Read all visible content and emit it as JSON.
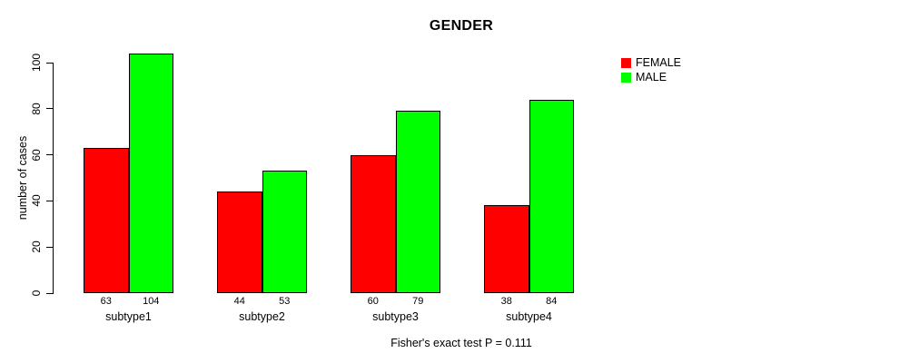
{
  "chart_data": {
    "type": "bar",
    "title": "GENDER",
    "categories": [
      "subtype1",
      "subtype2",
      "subtype3",
      "subtype4"
    ],
    "series": [
      {
        "name": "FEMALE",
        "color": "#FF0000",
        "values": [
          63,
          44,
          60,
          38
        ]
      },
      {
        "name": "MALE",
        "color": "#00FF00",
        "values": [
          104,
          53,
          79,
          84
        ]
      }
    ],
    "xlabel": "",
    "ylabel": "number of cases",
    "ylim": [
      0,
      100
    ],
    "yticks": [
      0,
      20,
      40,
      60,
      80,
      100
    ],
    "grid": false,
    "legend_position": "top-right",
    "bar_value_labels": true
  },
  "footer": {
    "caption": "Fisher's exact test P = 0.111"
  }
}
